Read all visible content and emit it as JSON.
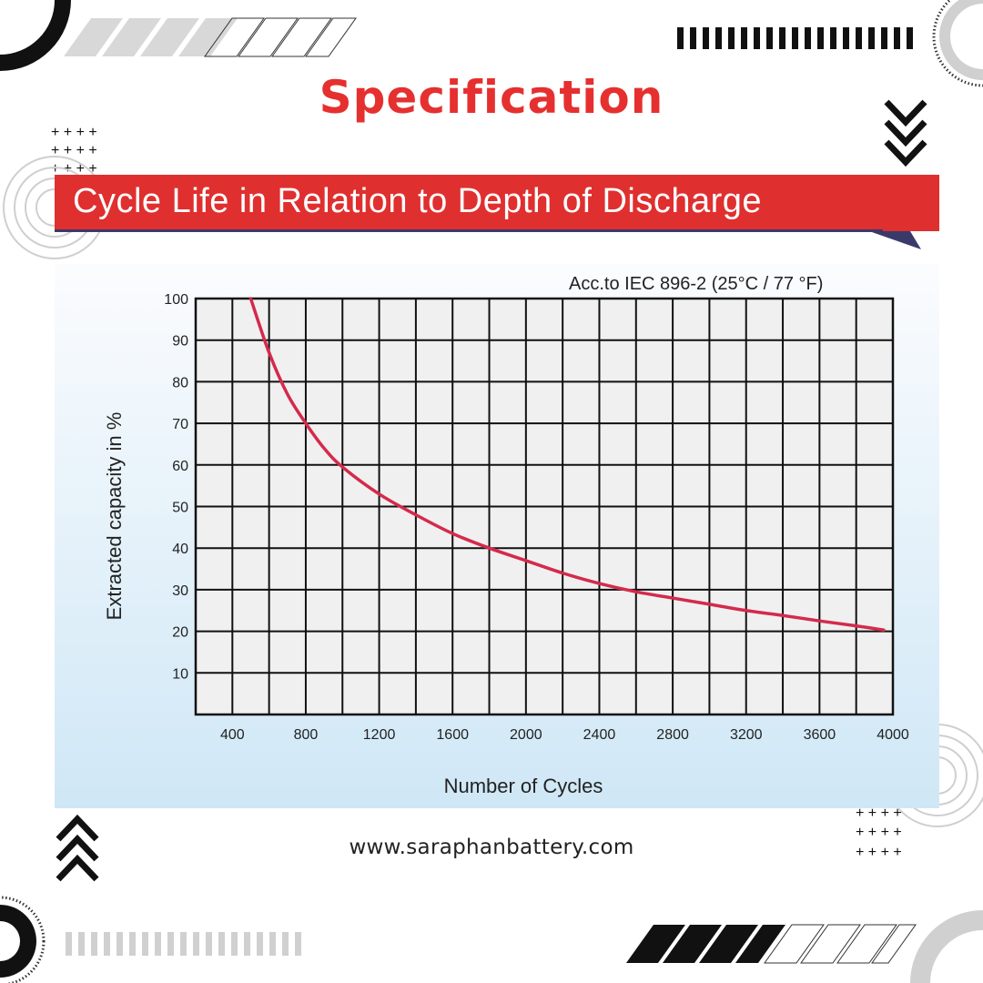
{
  "header": {
    "title": "Specification",
    "banner_title": "Cycle Life in Relation to Depth of Discharge"
  },
  "footer": {
    "website": "www.saraphanbattery.com"
  },
  "colors": {
    "accent_red": "#e5302f",
    "curve_red": "#d42a4c",
    "grid_bg": "#f0f0f0",
    "panel_bottom": "#cfe7f6"
  },
  "icons": [
    "chevron-down-icon",
    "chevron-up-icon",
    "plus-grid-icon",
    "stripe-icon",
    "barcode-icon",
    "circle-icon"
  ],
  "chart_data": {
    "type": "line",
    "title": "",
    "annotation": "Acc.to IEC 896-2 (25°C / 77 °F)",
    "xlabel": "Number of Cycles",
    "ylabel": "Extracted capacity in %",
    "xlim": [
      200,
      4000
    ],
    "ylim": [
      0,
      100
    ],
    "x_ticks": [
      400,
      800,
      1200,
      1600,
      2000,
      2400,
      2800,
      3200,
      3600,
      4000
    ],
    "y_ticks": [
      10,
      20,
      30,
      40,
      50,
      60,
      70,
      80,
      90,
      100
    ],
    "grid": true,
    "series": [
      {
        "x": [
          500,
          600,
          700,
          800,
          900,
          1000,
          1200,
          1400,
          1600,
          1800,
          2000,
          2200,
          2400,
          2600,
          2800,
          3000,
          3200,
          3400,
          3600,
          3800,
          3950
        ],
        "y": [
          100,
          87,
          77,
          70,
          64,
          59.5,
          53,
          48,
          43.5,
          40,
          37,
          34,
          31.5,
          29.5,
          28,
          26.5,
          25,
          23.8,
          22.5,
          21.3,
          20.3
        ]
      }
    ]
  }
}
